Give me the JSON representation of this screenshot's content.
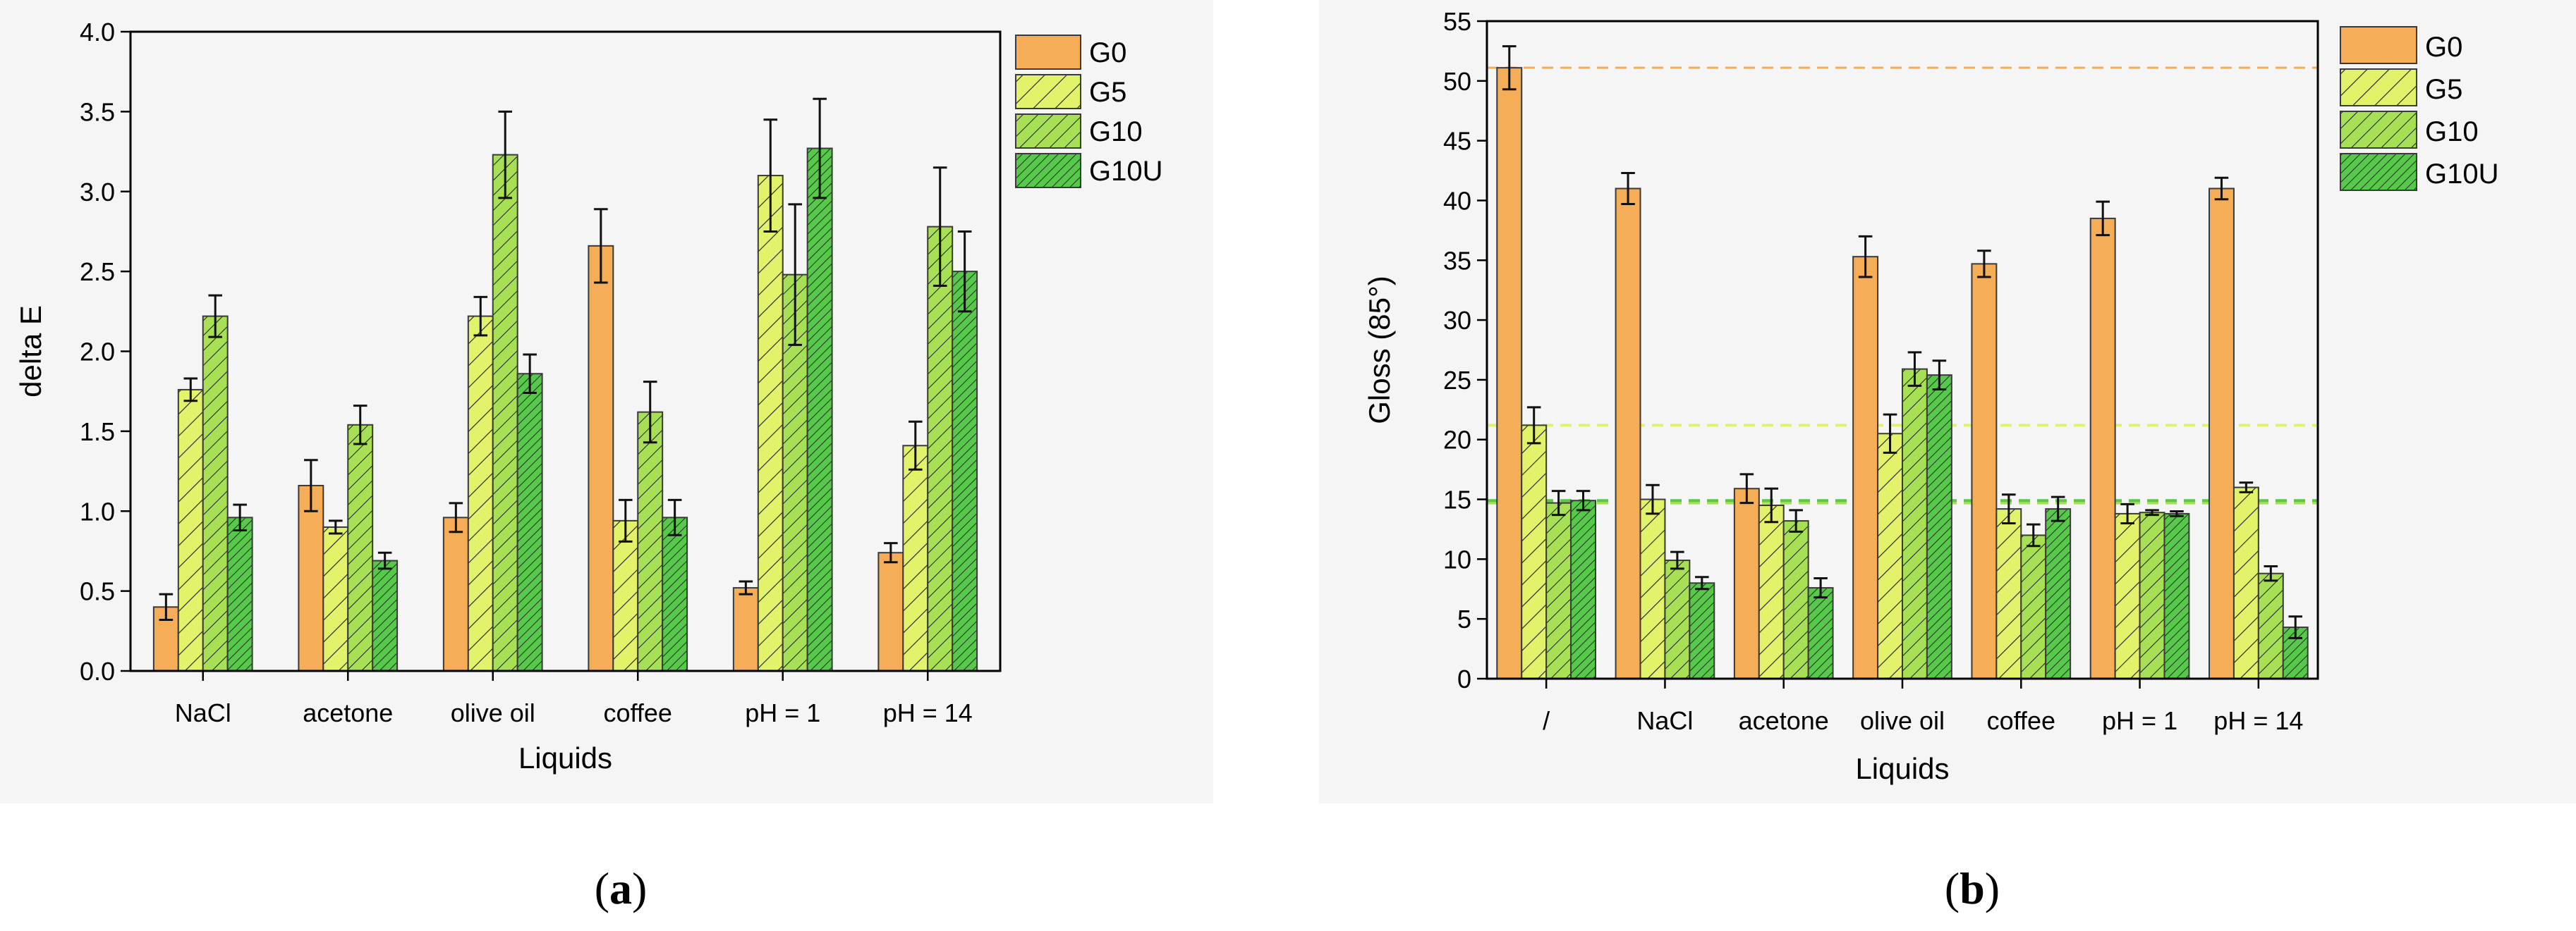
{
  "colors": {
    "G0": "#f5ad58",
    "G5": "#e2f26b",
    "G10": "#a8e055",
    "G10U": "#57c94a",
    "frame": "#000000",
    "ref_G0": "#f5ad58",
    "ref_G5": "#e2f26b",
    "ref_G10": "#a8e055",
    "ref_G10U": "#57c94a"
  },
  "panels": [
    {
      "caption_letter": "a"
    },
    {
      "caption_letter": "b"
    }
  ],
  "chart_data": [
    {
      "type": "bar",
      "xlabel": "Liquids",
      "ylabel": "delta E",
      "ylim": [
        0,
        4.0
      ],
      "yticks": [
        "0.0",
        "0.5",
        "1.0",
        "1.5",
        "2.0",
        "2.5",
        "3.0",
        "3.5",
        "4.0"
      ],
      "categories": [
        "NaCl",
        "acetone",
        "olive oil",
        "coffee",
        "pH = 1",
        "pH = 14"
      ],
      "legend_position": "top-right outside",
      "series": [
        {
          "name": "G0",
          "pattern": "solid",
          "values": [
            0.4,
            1.16,
            0.96,
            2.66,
            0.52,
            0.74
          ],
          "errors": [
            0.08,
            0.16,
            0.09,
            0.23,
            0.04,
            0.06
          ]
        },
        {
          "name": "G5",
          "pattern": "sparse-hatch",
          "values": [
            1.76,
            0.9,
            2.22,
            0.94,
            3.1,
            1.41
          ],
          "errors": [
            0.07,
            0.04,
            0.12,
            0.13,
            0.35,
            0.15
          ]
        },
        {
          "name": "G10",
          "pattern": "medium-hatch",
          "values": [
            2.22,
            1.54,
            3.23,
            1.62,
            2.48,
            2.78
          ],
          "errors": [
            0.13,
            0.12,
            0.27,
            0.19,
            0.44,
            0.37
          ]
        },
        {
          "name": "G10U",
          "pattern": "dense-hatch",
          "values": [
            0.96,
            0.69,
            1.86,
            0.96,
            3.27,
            2.5
          ],
          "errors": [
            0.08,
            0.05,
            0.12,
            0.11,
            0.31,
            0.25
          ]
        }
      ]
    },
    {
      "type": "bar",
      "xlabel": "Liquids",
      "ylabel": "Gloss (85°)",
      "ylim": [
        0,
        55
      ],
      "yticks": [
        "0",
        "5",
        "10",
        "15",
        "20",
        "25",
        "30",
        "35",
        "40",
        "45",
        "50",
        "55"
      ],
      "categories": [
        "/",
        "NaCl",
        "acetone",
        "olive oil",
        "coffee",
        "pH = 1",
        "pH = 14"
      ],
      "legend_position": "top-right outside",
      "reference_lines": [
        {
          "series": "G0",
          "value": 51.1,
          "style": "dashed"
        },
        {
          "series": "G5",
          "value": 21.2,
          "style": "dashed"
        },
        {
          "series": "G10",
          "value": 14.7,
          "style": "dashed"
        },
        {
          "series": "G10U",
          "value": 14.9,
          "style": "dashed"
        }
      ],
      "series": [
        {
          "name": "G0",
          "pattern": "solid",
          "values": [
            51.1,
            41.0,
            15.9,
            35.3,
            34.7,
            38.5,
            41.0
          ],
          "errors": [
            1.8,
            1.3,
            1.2,
            1.7,
            1.1,
            1.4,
            0.9
          ]
        },
        {
          "name": "G5",
          "pattern": "sparse-hatch",
          "values": [
            21.2,
            15.0,
            14.5,
            20.5,
            14.2,
            13.8,
            16.0
          ],
          "errors": [
            1.5,
            1.2,
            1.4,
            1.6,
            1.2,
            0.8,
            0.4
          ]
        },
        {
          "name": "G10",
          "pattern": "medium-hatch",
          "values": [
            14.7,
            9.9,
            13.2,
            25.9,
            12.0,
            13.9,
            8.8
          ],
          "errors": [
            1.0,
            0.7,
            0.9,
            1.4,
            0.9,
            0.2,
            0.6
          ]
        },
        {
          "name": "G10U",
          "pattern": "dense-hatch",
          "values": [
            14.9,
            8.0,
            7.6,
            25.4,
            14.2,
            13.8,
            4.3
          ],
          "errors": [
            0.8,
            0.5,
            0.8,
            1.2,
            1.0,
            0.2,
            0.9
          ]
        }
      ]
    }
  ]
}
